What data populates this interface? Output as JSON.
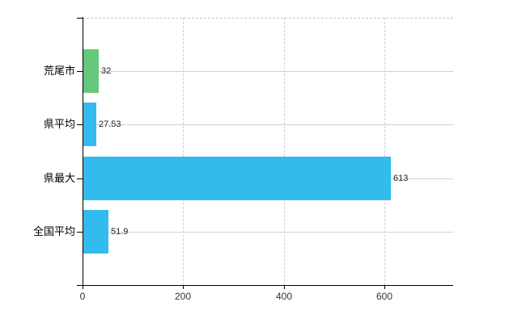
{
  "chart_data": {
    "type": "bar",
    "orientation": "horizontal",
    "title": "",
    "xlabel": "",
    "ylabel": "",
    "categories": [
      "荒尾市",
      "県平均",
      "県最大",
      "全国平均"
    ],
    "values": [
      32,
      27.53,
      613,
      51.9
    ],
    "value_labels": [
      "32",
      "27.53",
      "613",
      "51.9"
    ],
    "bar_colors": [
      "#66c87a",
      "#33bbee",
      "#33bbee",
      "#33bbee"
    ],
    "x_ticks": [
      0,
      200,
      400,
      600
    ],
    "x_tick_labels": [
      "0",
      "200",
      "400",
      "600"
    ],
    "xlim": [
      0,
      736
    ],
    "grid": {
      "vertical": "dashed",
      "horizontal": "solid-through-category-centers",
      "top_border": "dashed"
    },
    "legend": "none"
  },
  "colors": {
    "background": "#ffffff",
    "bar_blue": "#33bbee",
    "bar_green": "#66c87a",
    "h_gridline": "#ccd4cc",
    "v_gridline": "#d2ced8",
    "axis": "#000000",
    "value_label_text": "#222222",
    "tick_label_text": "#333333",
    "category_label_text": "#000000"
  }
}
